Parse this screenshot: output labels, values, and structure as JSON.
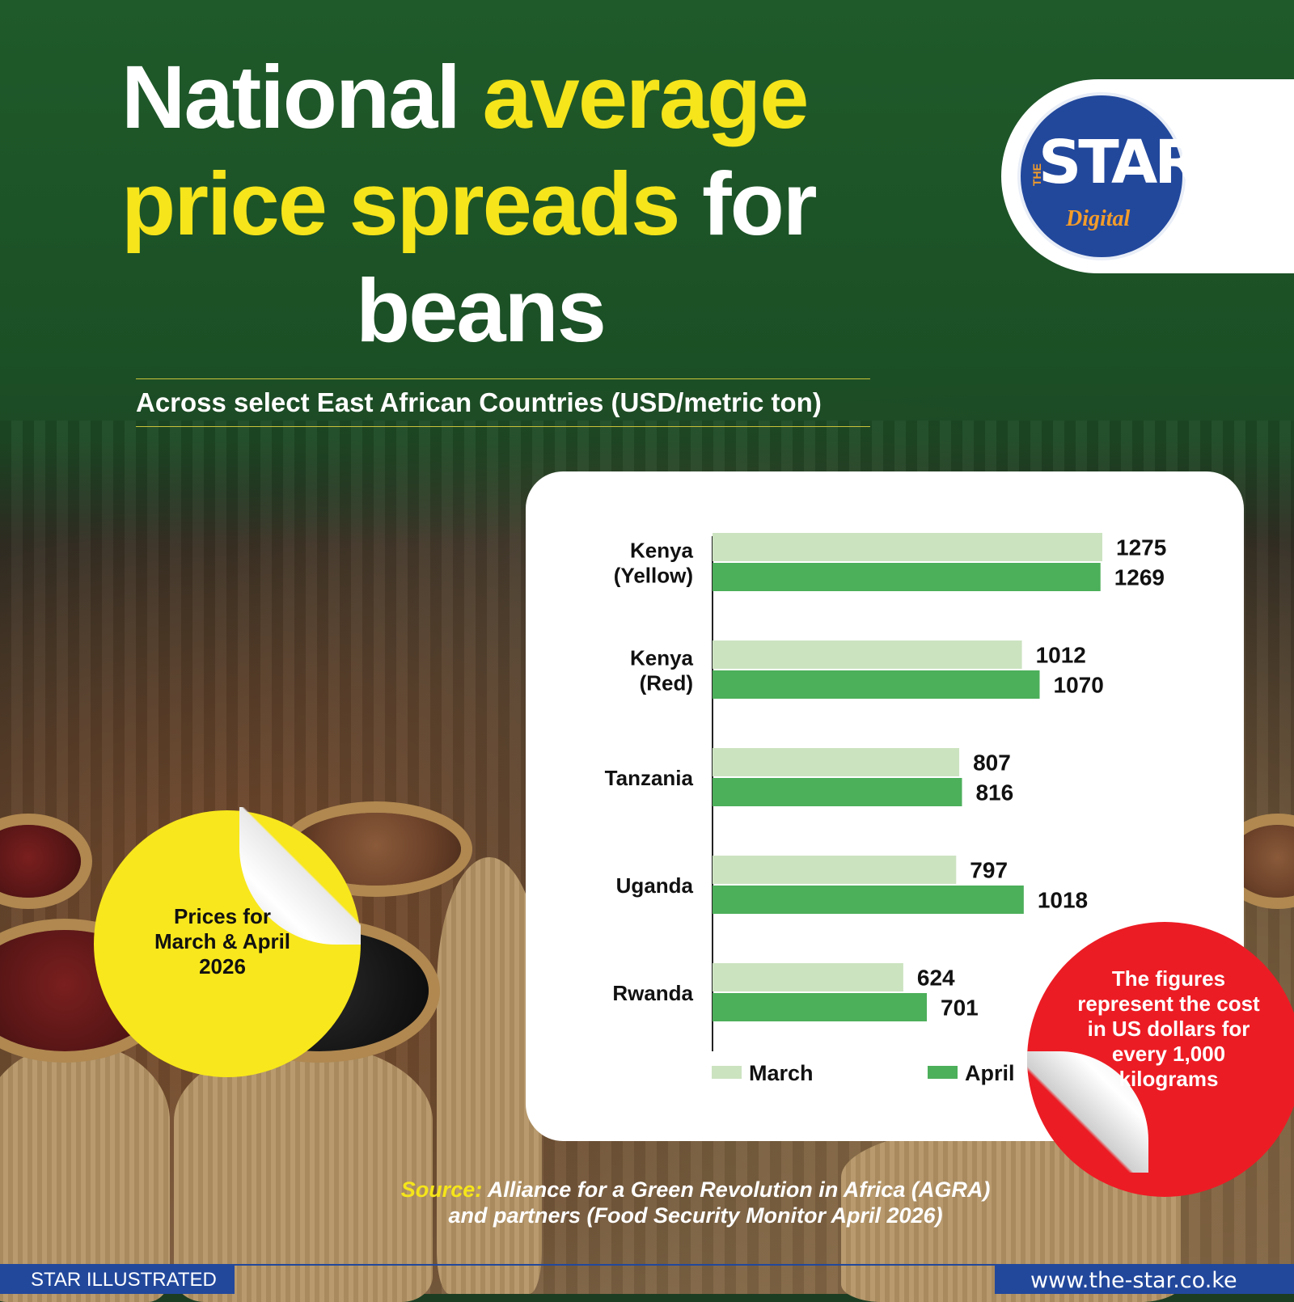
{
  "title": {
    "line1_white": "National ",
    "line1_yellow": "average",
    "line2_yellow": "price spreads",
    "line2_white": " for",
    "line3_white": "beans"
  },
  "subtitle": "Across select East African Countries (USD/metric ton)",
  "logo": {
    "the": "THE",
    "star": "STAR",
    "digital": "Digital"
  },
  "badge_yellow": "Prices for\nMarch & April\n2026",
  "badge_red": "The figures represent the cost in US dollars for every 1,000 kilograms",
  "source": {
    "label": "Source:",
    "text": " Alliance for a Green Revolution in Africa (AGRA) and partners (Food Security Monitor April 2026)"
  },
  "footer": {
    "left": "STAR ILLUSTRATED",
    "right": "www.the-star.co.ke"
  },
  "colors": {
    "march": "#cce3c0",
    "april": "#4caf5a",
    "title_yellow": "#f5e51a",
    "brand_blue": "#22489c",
    "badge_red": "#ec1c24"
  },
  "chart_data": {
    "type": "bar",
    "orientation": "horizontal",
    "categories": [
      [
        "Kenya",
        "(Yellow)"
      ],
      [
        "Kenya",
        "(Red)"
      ],
      [
        "Tanzania"
      ],
      [
        "Uganda"
      ],
      [
        "Rwanda"
      ]
    ],
    "series": [
      {
        "name": "March",
        "values": [
          1275,
          1012,
          807,
          797,
          624
        ]
      },
      {
        "name": "April",
        "values": [
          1269,
          1070,
          816,
          1018,
          701
        ]
      }
    ],
    "xlim": [
      0,
      1275
    ],
    "grid": false,
    "legend": "bottom"
  }
}
